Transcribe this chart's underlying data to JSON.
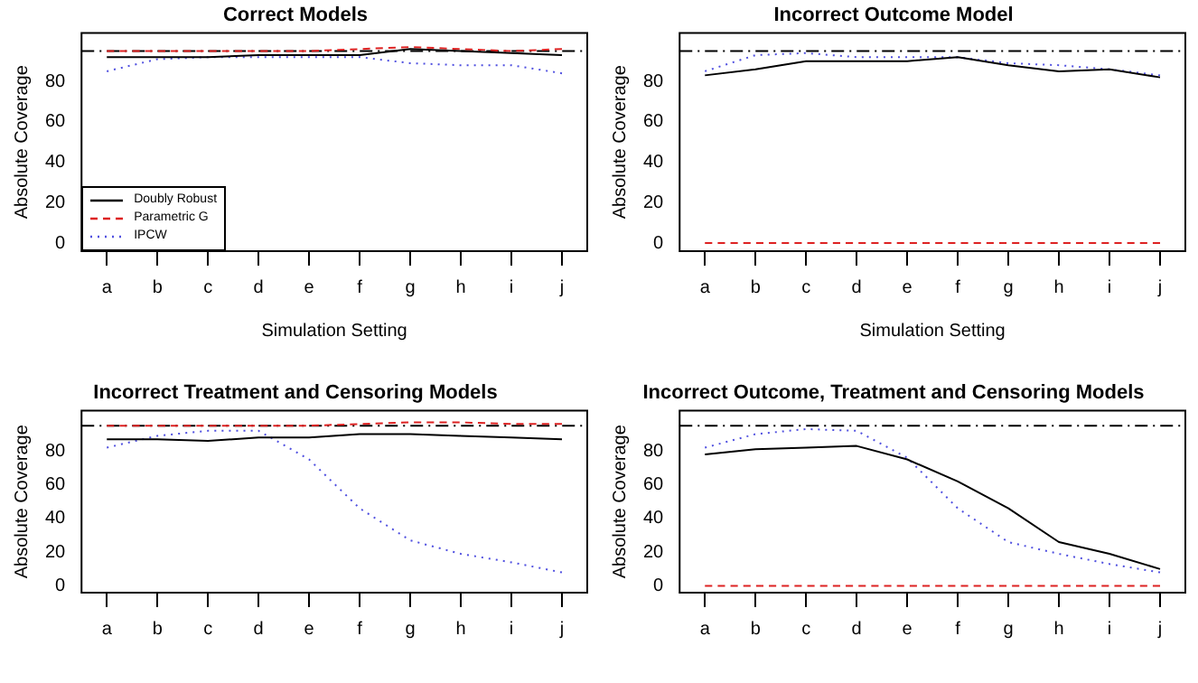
{
  "chart_data": [
    {
      "type": "line",
      "title": "Correct Models",
      "xlabel": "Simulation Setting",
      "ylabel": "Absolute Coverage",
      "categories": [
        "a",
        "b",
        "c",
        "d",
        "e",
        "f",
        "g",
        "h",
        "i",
        "j"
      ],
      "ylim": [
        -4,
        104
      ],
      "yticks": [
        0,
        20,
        40,
        60,
        80
      ],
      "grid": false,
      "legend": "bottom left",
      "marker": "none",
      "series": [
        {
          "name": "Doubly Robust",
          "color": "#000000",
          "line_style": "solid",
          "values": [
            92,
            92,
            92,
            93,
            93,
            93,
            96,
            95,
            94,
            93
          ]
        },
        {
          "name": "Parametric G",
          "color": "#dd2222",
          "line_style": "dashed",
          "values": [
            95,
            95,
            95,
            95,
            95,
            96,
            97,
            96,
            95,
            96
          ]
        },
        {
          "name": "IPCW",
          "color": "#5050e0",
          "line_style": "dotted",
          "values": [
            85,
            91,
            92,
            92,
            92,
            92,
            89,
            88,
            88,
            84
          ]
        }
      ],
      "ref_lines": [
        {
          "axis": "y",
          "value": 95,
          "color": "#000000",
          "line_style": "dashdot"
        }
      ]
    },
    {
      "type": "line",
      "title": "Incorrect Outcome Model",
      "xlabel": "Simulation Setting",
      "ylabel": "Absolute Coverage",
      "categories": [
        "a",
        "b",
        "c",
        "d",
        "e",
        "f",
        "g",
        "h",
        "i",
        "j"
      ],
      "ylim": [
        -4,
        104
      ],
      "yticks": [
        0,
        20,
        40,
        60,
        80
      ],
      "grid": false,
      "legend": false,
      "marker": "none",
      "series": [
        {
          "color": "#000000",
          "line_style": "solid",
          "values": [
            83,
            86,
            90,
            90,
            90,
            92,
            88,
            85,
            86,
            82
          ]
        },
        {
          "color": "#dd2222",
          "line_style": "dashed",
          "values": [
            0,
            0,
            0,
            0,
            0,
            0,
            0,
            0,
            0,
            0
          ]
        },
        {
          "color": "#5050e0",
          "line_style": "dotted",
          "values": [
            85,
            93,
            94,
            92,
            92,
            92,
            89,
            88,
            86,
            83
          ]
        }
      ],
      "ref_lines": [
        {
          "axis": "y",
          "value": 95,
          "color": "#000000",
          "line_style": "dashdot"
        }
      ]
    },
    {
      "type": "line",
      "title": "Incorrect Treatment and Censoring Models",
      "ylabel": "Absolute Coverage",
      "categories": [
        "a",
        "b",
        "c",
        "d",
        "e",
        "f",
        "g",
        "h",
        "i",
        "j"
      ],
      "ylim": [
        -4,
        104
      ],
      "yticks": [
        0,
        20,
        40,
        60,
        80
      ],
      "grid": false,
      "legend": false,
      "marker": "none",
      "series": [
        {
          "color": "#000000",
          "line_style": "solid",
          "values": [
            87,
            87,
            86,
            88,
            88,
            90,
            90,
            89,
            88,
            87
          ]
        },
        {
          "color": "#dd2222",
          "line_style": "dashed",
          "values": [
            95,
            95,
            95,
            95,
            95,
            96,
            97,
            97,
            96,
            96
          ]
        },
        {
          "color": "#5050e0",
          "line_style": "dotted",
          "values": [
            82,
            89,
            92,
            92,
            75,
            46,
            27,
            19,
            14,
            8
          ]
        }
      ],
      "ref_lines": [
        {
          "axis": "y",
          "value": 95,
          "color": "#000000",
          "line_style": "dashdot"
        }
      ]
    },
    {
      "type": "line",
      "title": "Incorrect Outcome, Treatment and Censoring Models",
      "ylabel": "Absolute Coverage",
      "categories": [
        "a",
        "b",
        "c",
        "d",
        "e",
        "f",
        "g",
        "h",
        "i",
        "j"
      ],
      "ylim": [
        -4,
        104
      ],
      "yticks": [
        0,
        20,
        40,
        60,
        80
      ],
      "grid": false,
      "legend": false,
      "marker": "none",
      "series": [
        {
          "color": "#000000",
          "line_style": "solid",
          "values": [
            78,
            81,
            82,
            83,
            75,
            62,
            46,
            26,
            19,
            10
          ]
        },
        {
          "color": "#dd2222",
          "line_style": "dashed",
          "values": [
            0,
            0,
            0,
            0,
            0,
            0,
            0,
            0,
            0,
            0
          ]
        },
        {
          "color": "#5050e0",
          "line_style": "dotted",
          "values": [
            82,
            90,
            93,
            92,
            76,
            46,
            26,
            19,
            13,
            8
          ]
        }
      ],
      "ref_lines": [
        {
          "axis": "y",
          "value": 95,
          "color": "#000000",
          "line_style": "dashdot"
        }
      ]
    }
  ]
}
